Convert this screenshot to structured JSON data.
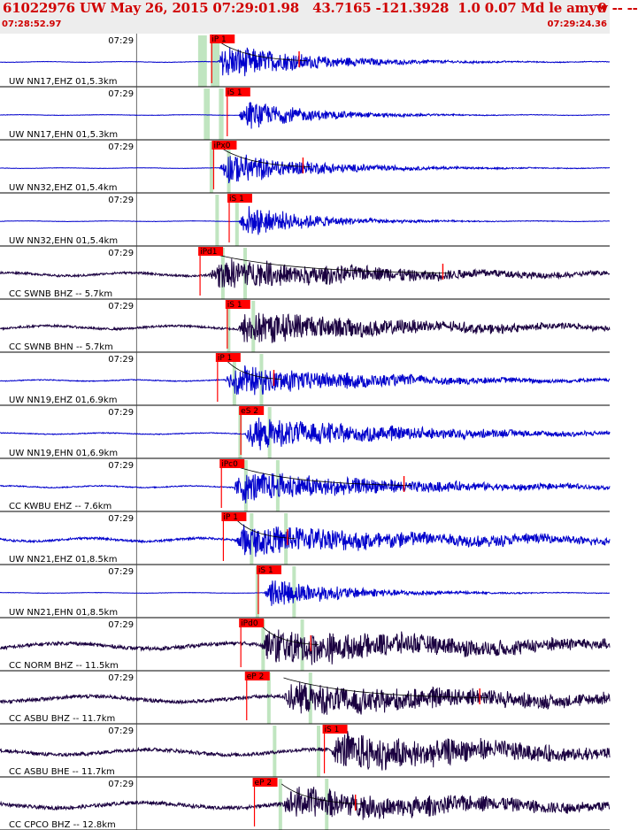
{
  "header": {
    "title": "61022976 UW May 26, 2015 07:29:01.98   43.7165 -121.3928  1.0 0.07 Md le amyw -- --",
    "flag": "9",
    "start_time": "07:28:52.97",
    "end_time": "07:29:24.36"
  },
  "colors": {
    "header_text": "#d00000",
    "trace_blue": "#0000cc",
    "trace_dark": "#1a0040",
    "pick": "#ff0000",
    "window": "#b5e0b5"
  },
  "chart_data": {
    "type": "seismogram",
    "time_window": {
      "start": "07:28:52.97",
      "end": "07:29:24.36"
    },
    "minute_tick_label": "07:29",
    "panels": [
      {
        "label": "UW NN17,EHZ 01,5.3km",
        "color": "blue",
        "pick": {
          "label": "iP 1",
          "t": 10.9
        },
        "onset": 11.2,
        "duration": 4.5,
        "amp": 24,
        "noise": 0.6,
        "freq": 2.6,
        "coda": {
          "tick": 15.4
        }
      },
      {
        "label": "UW NN17,EHN 01,5.3km",
        "color": "blue",
        "pick": {
          "label": "iS 1",
          "t": 11.7
        },
        "onset": 12.3,
        "duration": 3.5,
        "amp": 20,
        "noise": 0.5,
        "freq": 2.4
      },
      {
        "label": "UW NN32,EHZ 01,5.4km",
        "color": "blue",
        "pick": {
          "label": "iPx0",
          "t": 11.0
        },
        "onset": 11.3,
        "duration": 4.5,
        "amp": 22,
        "noise": 0.5,
        "freq": 2.6,
        "coda": {
          "tick": 15.6
        }
      },
      {
        "label": "UW NN32,EHN 01,5.4km",
        "color": "blue",
        "pick": {
          "label": "iS 1",
          "t": 11.8
        },
        "onset": 12.3,
        "duration": 3.5,
        "amp": 22,
        "noise": 0.5,
        "freq": 2.4
      },
      {
        "label": "CC SWNB BHZ -- 5.7km",
        "color": "dark",
        "pick": {
          "label": "iPd1",
          "t": 10.3
        },
        "onset": 10.8,
        "duration": 10,
        "amp": 20,
        "noise": 3,
        "freq": 1.7,
        "coda": {
          "tick": 22.8
        }
      },
      {
        "label": "CC SWNB BHN -- 5.7km",
        "color": "dark",
        "pick": {
          "label": "iS 1",
          "t": 11.7
        },
        "onset": 12.2,
        "duration": 9,
        "amp": 22,
        "noise": 3,
        "freq": 1.6
      },
      {
        "label": "UW NN19,EHZ 01,6.9km",
        "color": "blue",
        "pick": {
          "label": "iP 1",
          "t": 11.2
        },
        "onset": 11.6,
        "duration": 8,
        "amp": 20,
        "noise": 1.2,
        "freq": 2.2,
        "coda": {
          "tick": 14.1
        }
      },
      {
        "label": "UW NN19,EHN 01,6.9km",
        "color": "blue",
        "pick": {
          "label": "eS 2",
          "t": 12.4
        },
        "onset": 12.6,
        "duration": 9,
        "amp": 20,
        "noise": 1.2,
        "freq": 2.0
      },
      {
        "label": "CC KWBU EHZ -- 7.6km",
        "color": "blue",
        "pick": {
          "label": "iPc0",
          "t": 11.4
        },
        "onset": 12.0,
        "duration": 9,
        "amp": 20,
        "noise": 1.5,
        "freq": 2.2,
        "coda": {
          "tick": 20.8
        }
      },
      {
        "label": "UW NN21,EHZ 01,8.5km",
        "color": "blue",
        "pick": {
          "label": "iP 1",
          "t": 11.5
        },
        "onset": 12.1,
        "duration": 12,
        "amp": 20,
        "noise": 3,
        "freq": 1.8,
        "coda": {
          "tick": 14.8
        }
      },
      {
        "label": "UW NN21,EHN 01,8.5km",
        "color": "blue",
        "pick": {
          "label": "iS 1",
          "t": 13.3
        },
        "onset": 13.6,
        "duration": 4,
        "amp": 20,
        "noise": 0.5,
        "freq": 2.2
      },
      {
        "label": "CC NORM BHZ -- 11.5km",
        "color": "dark",
        "pick": {
          "label": "iPd0",
          "t": 12.4
        },
        "onset": 13.4,
        "duration": 14,
        "amp": 22,
        "noise": 5,
        "freq": 1.2,
        "coda": {
          "tick": 16.0
        }
      },
      {
        "label": "CC ASBU BHZ -- 11.7km",
        "color": "dark",
        "pick": {
          "label": "eP 2",
          "t": 12.7
        },
        "onset": 14.6,
        "duration": 14,
        "amp": 20,
        "noise": 5,
        "freq": 1.1,
        "coda": {
          "tick": 24.7
        }
      },
      {
        "label": "CC ASBU BHE -- 11.7km",
        "color": "dark",
        "pick": {
          "label": "iS 1",
          "t": 16.7
        },
        "onset": 17.0,
        "duration": 12,
        "amp": 24,
        "noise": 5,
        "freq": 1.2
      },
      {
        "label": "CC CPCO BHZ -- 12.8km",
        "color": "dark",
        "pick": {
          "label": "eP 2",
          "t": 13.1
        },
        "onset": 14.5,
        "duration": 13,
        "amp": 20,
        "noise": 5,
        "freq": 1.2,
        "coda": {
          "tick": 18.3
        }
      }
    ]
  }
}
